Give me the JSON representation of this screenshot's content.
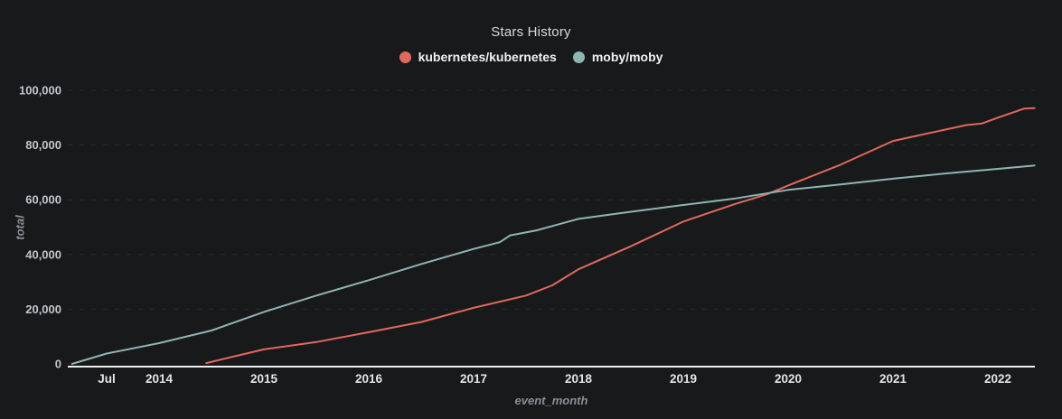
{
  "chart_data": {
    "type": "line",
    "title": "Stars History",
    "xlabel": "event_month",
    "ylabel": "total",
    "xlim": [
      2013.13,
      2022.37
    ],
    "ylim": [
      0,
      100000
    ],
    "grid": "horizontal-dashed",
    "legend_position": "top-center",
    "x_ticks": [
      {
        "label": "Jul",
        "year": 2013.5
      },
      {
        "label": "2014",
        "year": 2014
      },
      {
        "label": "2015",
        "year": 2015
      },
      {
        "label": "2016",
        "year": 2016
      },
      {
        "label": "2017",
        "year": 2017
      },
      {
        "label": "2018",
        "year": 2018
      },
      {
        "label": "2019",
        "year": 2019
      },
      {
        "label": "2020",
        "year": 2020
      },
      {
        "label": "2021",
        "year": 2021
      },
      {
        "label": "2022",
        "year": 2022
      }
    ],
    "y_ticks": [
      {
        "label": "0",
        "value": 0
      },
      {
        "label": "20,000",
        "value": 20000
      },
      {
        "label": "40,000",
        "value": 40000
      },
      {
        "label": "60,000",
        "value": 60000
      },
      {
        "label": "80,000",
        "value": 80000
      },
      {
        "label": "100,000",
        "value": 100000
      }
    ],
    "series": [
      {
        "name": "kubernetes/kubernetes",
        "color": "#e0695e",
        "points": [
          [
            2014.45,
            300
          ],
          [
            2014.7,
            2600
          ],
          [
            2015.0,
            5300
          ],
          [
            2015.5,
            8000
          ],
          [
            2016.0,
            11600
          ],
          [
            2016.5,
            15300
          ],
          [
            2017.0,
            20500
          ],
          [
            2017.5,
            25000
          ],
          [
            2017.75,
            28700
          ],
          [
            2018.0,
            34600
          ],
          [
            2018.5,
            43000
          ],
          [
            2019.0,
            52000
          ],
          [
            2019.5,
            58500
          ],
          [
            2019.8,
            62000
          ],
          [
            2020.0,
            65200
          ],
          [
            2020.5,
            72800
          ],
          [
            2021.0,
            81500
          ],
          [
            2021.7,
            87300
          ],
          [
            2021.85,
            87900
          ],
          [
            2022.0,
            90000
          ],
          [
            2022.25,
            93300
          ],
          [
            2022.35,
            93500
          ]
        ]
      },
      {
        "name": "moby/moby",
        "color": "#8fb5b3",
        "points": [
          [
            2013.17,
            0
          ],
          [
            2013.5,
            3800
          ],
          [
            2014.0,
            7600
          ],
          [
            2014.5,
            12200
          ],
          [
            2015.0,
            19000
          ],
          [
            2015.5,
            25000
          ],
          [
            2016.0,
            30600
          ],
          [
            2016.5,
            36500
          ],
          [
            2017.0,
            42000
          ],
          [
            2017.25,
            44500
          ],
          [
            2017.35,
            47000
          ],
          [
            2017.6,
            48800
          ],
          [
            2018.0,
            53000
          ],
          [
            2018.5,
            55600
          ],
          [
            2019.0,
            58100
          ],
          [
            2019.5,
            60500
          ],
          [
            2020.0,
            63600
          ],
          [
            2020.5,
            65600
          ],
          [
            2021.0,
            67700
          ],
          [
            2021.5,
            69600
          ],
          [
            2022.0,
            71300
          ],
          [
            2022.35,
            72500
          ]
        ]
      }
    ]
  },
  "colors": {
    "background": "#18191b",
    "grid": "#2b2c30",
    "axis_line": "#eceef0",
    "x_tick_label": "#e3e4e6",
    "y_tick_label": "#c2c5c9",
    "axis_name": "#8a8f95",
    "title": "#d9dadb",
    "legend_text": "#f0f1f2"
  }
}
